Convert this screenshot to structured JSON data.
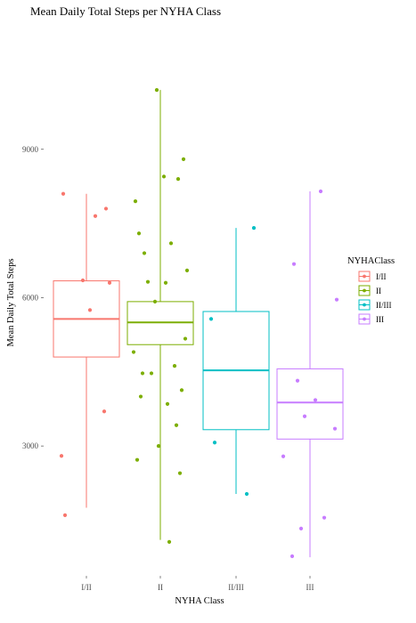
{
  "chart_data": {
    "type": "boxplot",
    "title": "Mean Daily Total Steps per NYHA Class",
    "xlabel": "NYHA Class",
    "ylabel": "Mean Daily Total Steps",
    "ylim": [
      500,
      11300
    ],
    "yticks": [
      3000,
      6000,
      9000
    ],
    "legend": {
      "title": "NYHAClass",
      "placement": "right"
    },
    "groups": [
      {
        "name": "I/II",
        "color": "#F8766D",
        "box": {
          "min": 1750,
          "q1": 4800,
          "median": 5570,
          "q3": 6340,
          "max": 8100
        },
        "points": [
          8100,
          7800,
          7650,
          6350,
          6300,
          5750,
          3700,
          2800,
          1600
        ]
      },
      {
        "name": "II",
        "color": "#7CAE00",
        "box": {
          "min": 1100,
          "q1": 5050,
          "median": 5500,
          "q3": 5920,
          "max": 10200
        },
        "points": [
          10200,
          8800,
          8450,
          8400,
          7950,
          7300,
          7100,
          6900,
          6550,
          6320,
          6300,
          5920,
          5170,
          4900,
          4620,
          4470,
          4470,
          4130,
          4000,
          3850,
          3420,
          3000,
          2720,
          2450,
          1060
        ]
      },
      {
        "name": "II/III",
        "color": "#00BFC4",
        "box": {
          "min": 2030,
          "q1": 3330,
          "median": 4530,
          "q3": 5720,
          "max": 7410
        },
        "points": [
          7410,
          5570,
          3070,
          2030
        ]
      },
      {
        "name": "III",
        "color": "#C77CFF",
        "box": {
          "min": 750,
          "q1": 3140,
          "median": 3880,
          "q3": 4560,
          "max": 8150
        },
        "points": [
          8150,
          6680,
          5960,
          4320,
          3930,
          3600,
          3350,
          2790,
          1550,
          1330,
          770
        ]
      }
    ]
  }
}
